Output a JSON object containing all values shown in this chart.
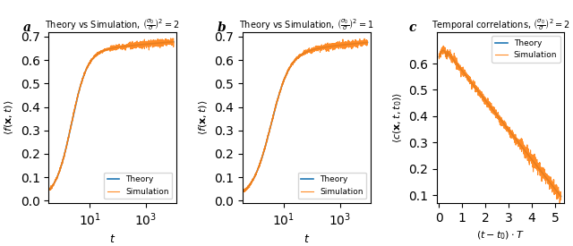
{
  "panel_a_title": "Theory vs Simulation, $\\left(\\frac{\\sigma_0}{\\sigma}\\right)^2 = 2$",
  "panel_b_title": "Theory vs Simulation, $\\left(\\frac{\\sigma_0}{\\sigma}\\right)^2 = 1$",
  "panel_c_title": "Temporal correlations, $\\left(\\frac{\\sigma_0}{\\sigma}\\right)^2 = 2$",
  "panel_labels": [
    "a",
    "b",
    "c"
  ],
  "ylabel_ab": "$\\langle f(\\mathbf{x}, t) \\rangle$",
  "ylabel_c": "$\\langle c(\\mathbf{x}, t, t_0) \\rangle$",
  "xlabel_ab": "$t$",
  "xlabel_c": "$(t - t_0) \\cdot T$",
  "theory_color": "#1f77b4",
  "sim_color": "#ff7f0e",
  "theory_lw": 1.2,
  "sim_lw": 0.8,
  "ylim_ab": [
    -0.01,
    0.72
  ],
  "ylim_c": [
    0.07,
    0.72
  ],
  "xlim_ab_log": [
    0.35,
    12000
  ],
  "xlim_c": [
    -0.1,
    5.4
  ],
  "yticks_ab": [
    0.0,
    0.1,
    0.2,
    0.3,
    0.4,
    0.5,
    0.6,
    0.7
  ],
  "yticks_c": [
    0.1,
    0.2,
    0.3,
    0.4,
    0.5,
    0.6
  ],
  "xticks_c": [
    0,
    1,
    2,
    3,
    4,
    5
  ]
}
